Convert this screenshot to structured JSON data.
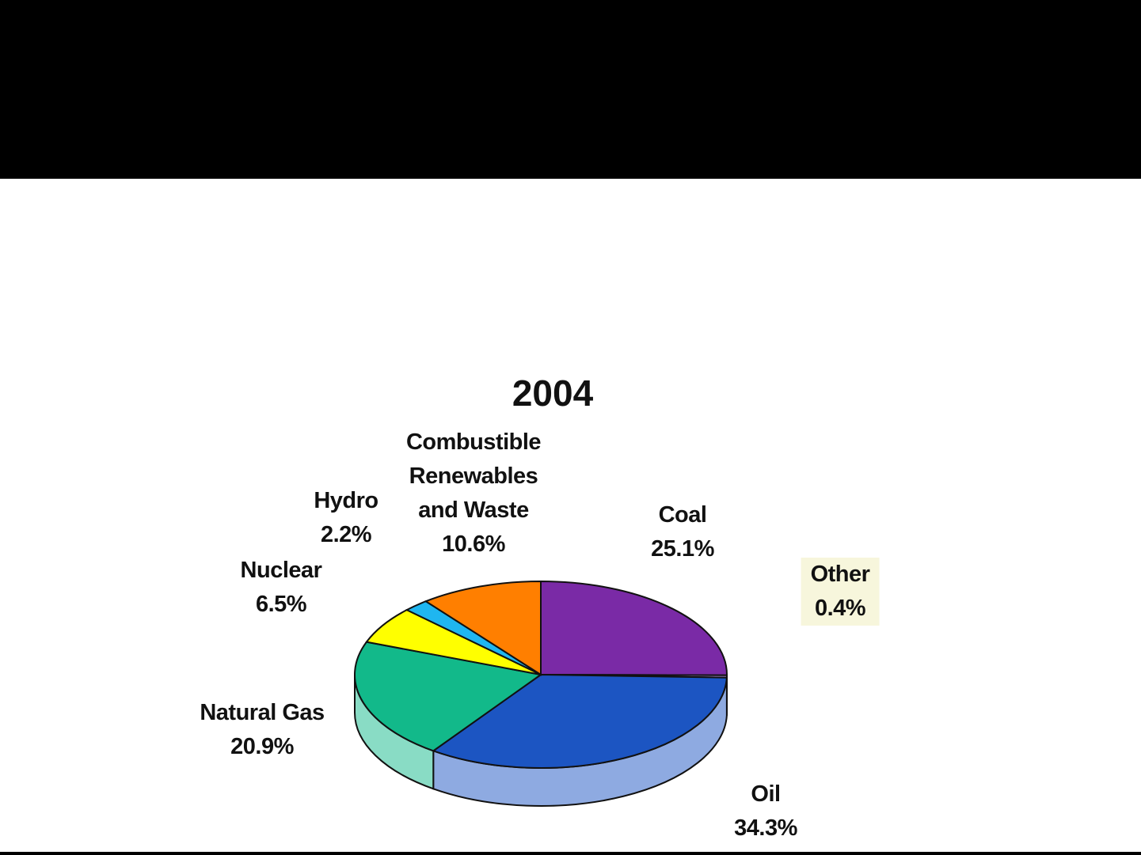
{
  "chart_data": {
    "type": "pie",
    "title": "2004",
    "categories": [
      "Coal",
      "Other",
      "Oil",
      "Natural Gas",
      "Nuclear",
      "Hydro",
      "Combustible Renewables and Waste"
    ],
    "values": [
      25.1,
      0.4,
      34.3,
      20.9,
      6.5,
      2.2,
      10.6
    ],
    "value_labels": [
      "25.1%",
      "0.4%",
      "34.3%",
      "20.9%",
      "6.5%",
      "2.2%",
      "10.6%"
    ],
    "colors": [
      "#7a2aa6",
      "#a98ad8",
      "#1c55c2",
      "#12b98a",
      "#ffff00",
      "#1fb6f0",
      "#ff7f00"
    ]
  }
}
